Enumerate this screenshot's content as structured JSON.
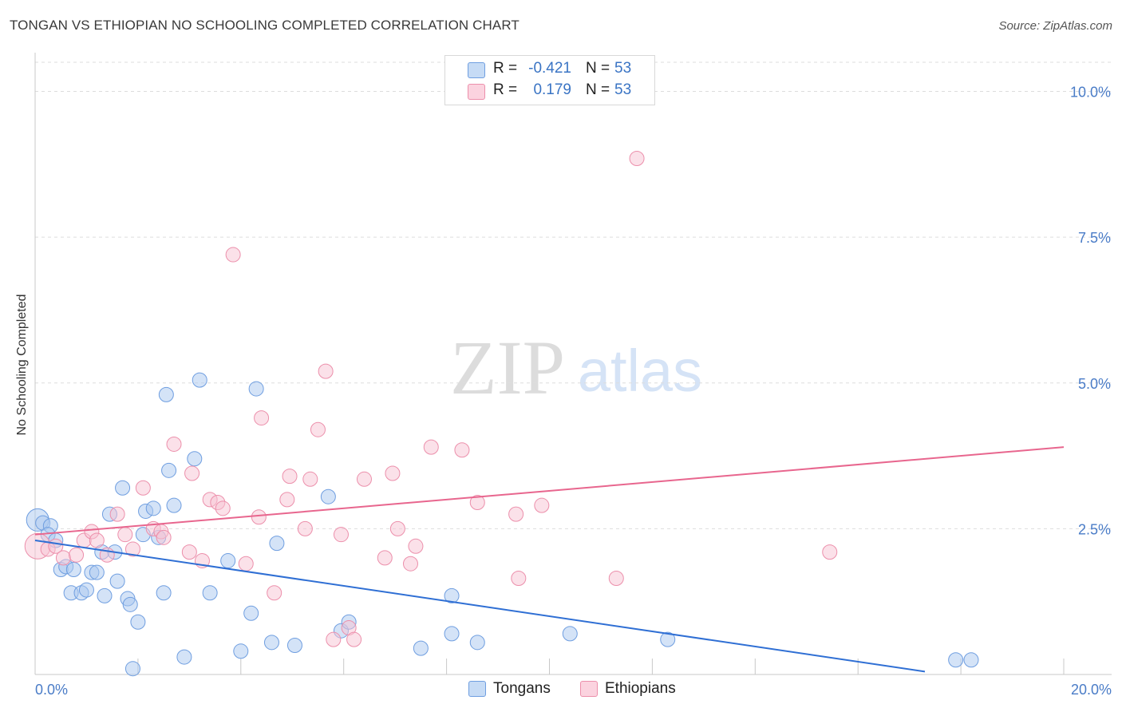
{
  "title": "TONGAN VS ETHIOPIAN NO SCHOOLING COMPLETED CORRELATION CHART",
  "source": "Source: ZipAtlas.com",
  "watermark": {
    "zip": "ZIP",
    "atlas": "atlas"
  },
  "legend_top": {
    "rows": [
      {
        "r_label": "R =",
        "r_value": "-0.421",
        "n_label": "N =",
        "n_value": "53"
      },
      {
        "r_label": "R =",
        "r_value": "0.179",
        "n_label": "N =",
        "n_value": "53"
      }
    ]
  },
  "legend_bottom": {
    "items": [
      "Tongans",
      "Ethiopians"
    ]
  },
  "colors": {
    "tongan_fill": "#a9c8f0",
    "tongan_stroke": "#6f9ee0",
    "tongan_line": "#2f6fd4",
    "ethiopian_fill": "#f8c3d3",
    "ethiopian_stroke": "#ec8fab",
    "ethiopian_line": "#e8668e",
    "tick_text": "#4a7cc7",
    "grid": "#dddddd"
  },
  "chart_data": {
    "type": "scatter",
    "title": "TONGAN VS ETHIOPIAN NO SCHOOLING COMPLETED CORRELATION CHART",
    "xlabel": "",
    "ylabel": "No Schooling Completed",
    "xlim": [
      0,
      20
    ],
    "ylim": [
      0,
      10.5
    ],
    "y_ticks": [
      {
        "value": 2.5,
        "label": "2.5%"
      },
      {
        "value": 5.0,
        "label": "5.0%"
      },
      {
        "value": 7.5,
        "label": "7.5%"
      },
      {
        "value": 10.0,
        "label": "10.0%"
      }
    ],
    "x_tick_labels": [
      {
        "value": 0,
        "label": "0.0%"
      },
      {
        "value": 20,
        "label": "20.0%"
      }
    ],
    "grid": true,
    "legend_position": "top-center",
    "series": [
      {
        "name": "Tongans",
        "trend": {
          "x": [
            0,
            17.3
          ],
          "y": [
            2.3,
            0.05
          ]
        },
        "points": [
          [
            0.05,
            2.65,
            14
          ],
          [
            0.15,
            2.6,
            9
          ],
          [
            0.3,
            2.55,
            9
          ],
          [
            0.25,
            2.4,
            9
          ],
          [
            0.4,
            2.3,
            9
          ],
          [
            0.5,
            1.8,
            9
          ],
          [
            0.6,
            1.85,
            9
          ],
          [
            0.75,
            1.8,
            9
          ],
          [
            0.7,
            1.4,
            9
          ],
          [
            0.9,
            1.4,
            9
          ],
          [
            1.0,
            1.45,
            9
          ],
          [
            1.1,
            1.75,
            9
          ],
          [
            1.2,
            1.75,
            9
          ],
          [
            1.3,
            2.1,
            9
          ],
          [
            1.35,
            1.35,
            9
          ],
          [
            1.45,
            2.75,
            9
          ],
          [
            1.55,
            2.1,
            9
          ],
          [
            1.6,
            1.6,
            9
          ],
          [
            1.7,
            3.2,
            9
          ],
          [
            1.8,
            1.3,
            9
          ],
          [
            1.85,
            1.2,
            9
          ],
          [
            1.9,
            0.1,
            9
          ],
          [
            2.0,
            0.9,
            9
          ],
          [
            2.1,
            2.4,
            9
          ],
          [
            2.15,
            2.8,
            9
          ],
          [
            2.3,
            2.85,
            9
          ],
          [
            2.4,
            2.35,
            9
          ],
          [
            2.5,
            1.4,
            9
          ],
          [
            2.55,
            4.8,
            9
          ],
          [
            2.6,
            3.5,
            9
          ],
          [
            2.7,
            2.9,
            9
          ],
          [
            2.9,
            0.3,
            9
          ],
          [
            3.1,
            3.7,
            9
          ],
          [
            3.2,
            5.05,
            9
          ],
          [
            3.4,
            1.4,
            9
          ],
          [
            3.75,
            1.95,
            9
          ],
          [
            4.0,
            0.4,
            9
          ],
          [
            4.2,
            1.05,
            9
          ],
          [
            4.3,
            4.9,
            9
          ],
          [
            4.6,
            0.55,
            9
          ],
          [
            4.7,
            2.25,
            9
          ],
          [
            5.05,
            0.5,
            9
          ],
          [
            5.7,
            3.05,
            9
          ],
          [
            5.95,
            0.75,
            9
          ],
          [
            6.1,
            0.9,
            9
          ],
          [
            7.5,
            0.45,
            9
          ],
          [
            8.1,
            0.7,
            9
          ],
          [
            8.1,
            1.35,
            9
          ],
          [
            8.6,
            0.55,
            9
          ],
          [
            10.4,
            0.7,
            9
          ],
          [
            12.3,
            0.6,
            9
          ],
          [
            17.9,
            0.25,
            9
          ],
          [
            18.2,
            0.25,
            9
          ]
        ]
      },
      {
        "name": "Ethiopians",
        "trend": {
          "x": [
            0,
            20
          ],
          "y": [
            2.4,
            3.9
          ]
        },
        "points": [
          [
            0.05,
            2.2,
            16
          ],
          [
            0.25,
            2.15,
            9
          ],
          [
            0.4,
            2.2,
            9
          ],
          [
            0.55,
            2.0,
            9
          ],
          [
            0.8,
            2.05,
            9
          ],
          [
            0.95,
            2.3,
            9
          ],
          [
            1.1,
            2.45,
            9
          ],
          [
            1.2,
            2.3,
            9
          ],
          [
            1.4,
            2.05,
            9
          ],
          [
            1.6,
            2.75,
            9
          ],
          [
            1.75,
            2.4,
            9
          ],
          [
            1.9,
            2.15,
            9
          ],
          [
            2.1,
            3.2,
            9
          ],
          [
            2.3,
            2.5,
            9
          ],
          [
            2.45,
            2.45,
            9
          ],
          [
            2.5,
            2.35,
            9
          ],
          [
            2.7,
            3.95,
            9
          ],
          [
            3.0,
            2.1,
            9
          ],
          [
            3.05,
            3.45,
            9
          ],
          [
            3.25,
            1.95,
            9
          ],
          [
            3.4,
            3.0,
            9
          ],
          [
            3.55,
            2.95,
            9
          ],
          [
            3.65,
            2.85,
            9
          ],
          [
            3.85,
            7.2,
            9
          ],
          [
            4.1,
            1.9,
            9
          ],
          [
            4.35,
            2.7,
            9
          ],
          [
            4.4,
            4.4,
            9
          ],
          [
            4.65,
            1.4,
            9
          ],
          [
            4.9,
            3.0,
            9
          ],
          [
            4.95,
            3.4,
            9
          ],
          [
            5.25,
            2.5,
            9
          ],
          [
            5.35,
            3.35,
            9
          ],
          [
            5.5,
            4.2,
            9
          ],
          [
            5.65,
            5.2,
            9
          ],
          [
            5.8,
            0.6,
            9
          ],
          [
            5.95,
            2.4,
            9
          ],
          [
            6.1,
            0.8,
            9
          ],
          [
            6.2,
            0.6,
            9
          ],
          [
            6.4,
            3.35,
            9
          ],
          [
            6.8,
            2.0,
            9
          ],
          [
            6.95,
            3.45,
            9
          ],
          [
            7.05,
            2.5,
            9
          ],
          [
            7.3,
            1.9,
            9
          ],
          [
            7.4,
            2.2,
            9
          ],
          [
            7.7,
            3.9,
            9
          ],
          [
            8.3,
            3.85,
            9
          ],
          [
            8.6,
            2.95,
            9
          ],
          [
            9.35,
            2.75,
            9
          ],
          [
            9.4,
            1.65,
            9
          ],
          [
            9.85,
            2.9,
            9
          ],
          [
            11.3,
            1.65,
            9
          ],
          [
            11.7,
            8.85,
            9
          ],
          [
            15.45,
            2.1,
            9
          ]
        ]
      }
    ]
  }
}
